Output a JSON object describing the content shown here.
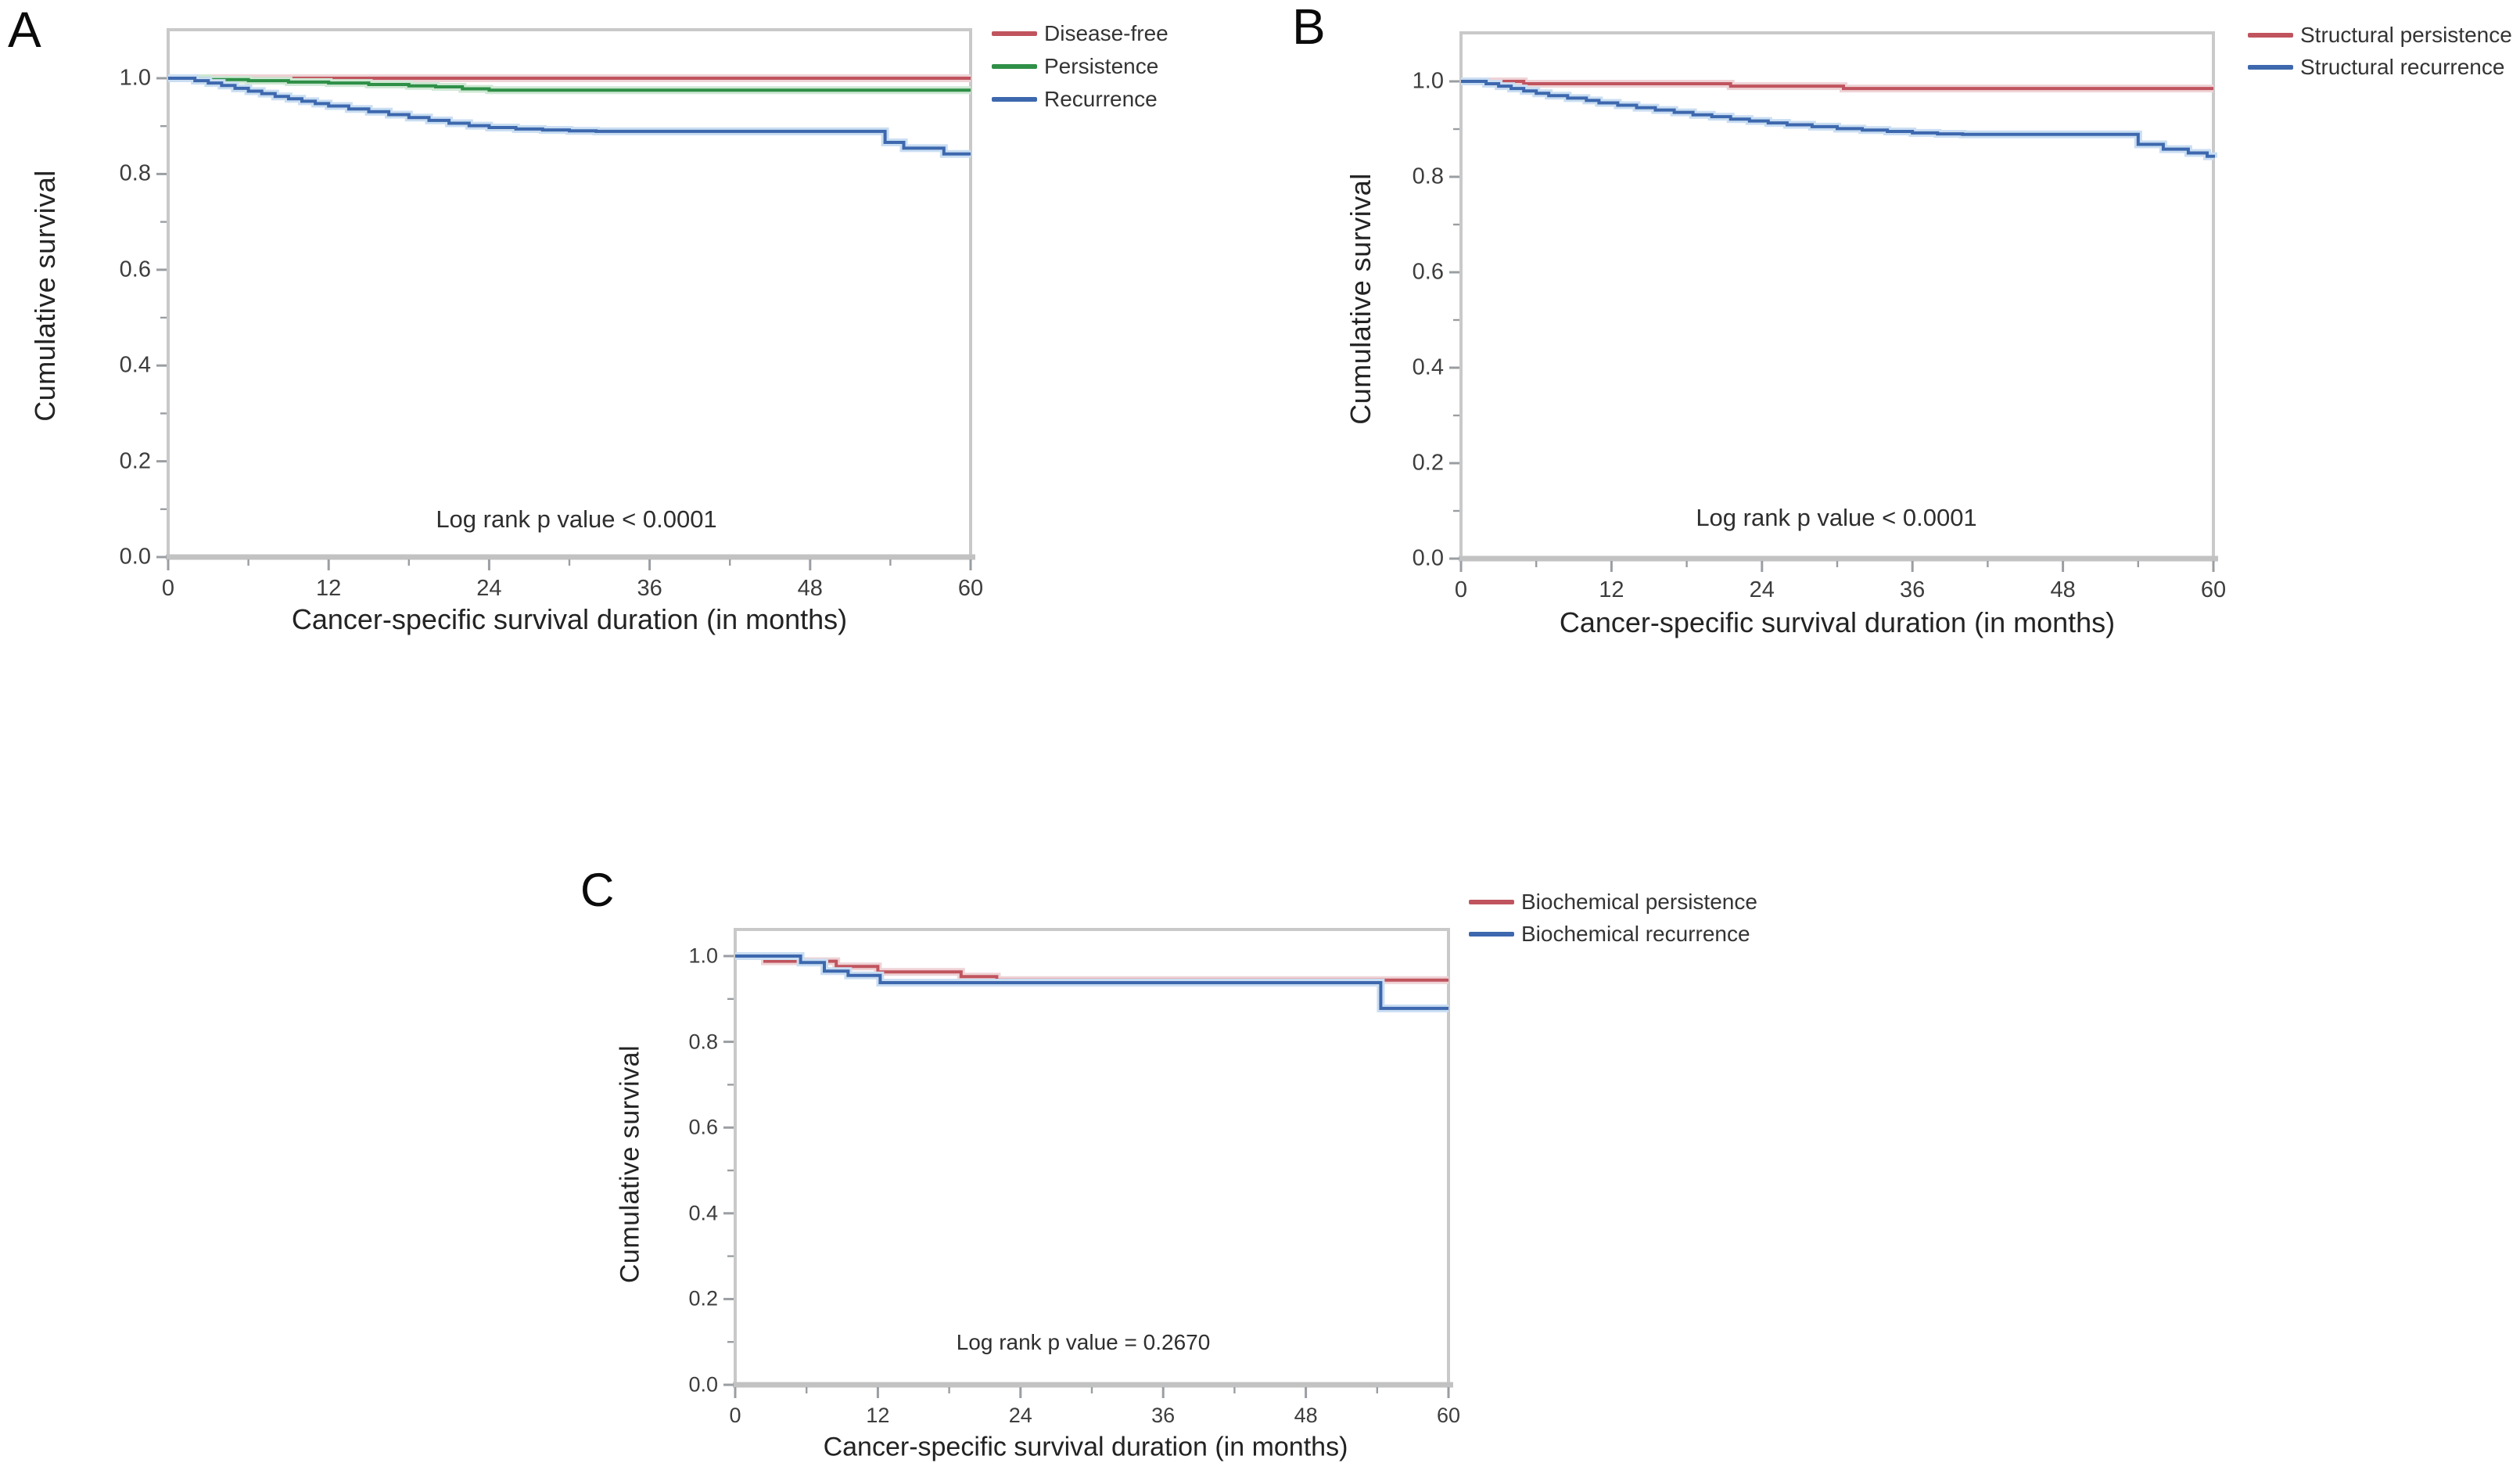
{
  "figure": {
    "background": "#ffffff",
    "axis_frame_color": "#c9c9c9",
    "axis_line_color": "#c2c2c2",
    "tick_color": "#9a9ea2",
    "text_color": "#3d3d3d"
  },
  "chart_data": [
    {
      "type": "line",
      "subtype": "kaplan-meier-step",
      "panel_label": "A",
      "x_label": "Cancer-specific survival duration (in months)",
      "y_label": "Cumulative survival",
      "p_value": "Log rank p value < 0.0001",
      "xlim": [
        0,
        60
      ],
      "ylim": [
        0.0,
        1.1
      ],
      "x_ticks": [
        0,
        12,
        24,
        36,
        48,
        60
      ],
      "x_minor_ticks": [
        6,
        18,
        30,
        42,
        54
      ],
      "y_ticks": [
        "1.0",
        "0.8",
        "0.6",
        "0.4",
        "0.2",
        "0.0"
      ],
      "y_tick_values": [
        1.0,
        0.8,
        0.6,
        0.4,
        0.2,
        0.0
      ],
      "y_minor_ticks": [
        0.9,
        0.7,
        0.5,
        0.3,
        0.1
      ],
      "grid": false,
      "legend_position": "outside-top-right",
      "series": [
        {
          "name": "Disease-free",
          "color": "#c0545e",
          "glow": "#eed3d6",
          "points": [
            [
              0,
              1.0
            ],
            [
              60,
              1.0
            ]
          ]
        },
        {
          "name": "Persistence",
          "color": "#2e8f47",
          "glow": "#cfe8d4",
          "points": [
            [
              0,
              1.0
            ],
            [
              3,
              0.997
            ],
            [
              6,
              0.995
            ],
            [
              9,
              0.992
            ],
            [
              12,
              0.99
            ],
            [
              15,
              0.987
            ],
            [
              18,
              0.984
            ],
            [
              20,
              0.982
            ],
            [
              22,
              0.978
            ],
            [
              24,
              0.975
            ],
            [
              60,
              0.975
            ]
          ]
        },
        {
          "name": "Recurrence",
          "color": "#3d68ae",
          "glow": "#cadef2",
          "points": [
            [
              0,
              1.0
            ],
            [
              2,
              0.995
            ],
            [
              3,
              0.99
            ],
            [
              4,
              0.985
            ],
            [
              5,
              0.979
            ],
            [
              6,
              0.973
            ],
            [
              7,
              0.968
            ],
            [
              8,
              0.962
            ],
            [
              9,
              0.957
            ],
            [
              10,
              0.952
            ],
            [
              11,
              0.947
            ],
            [
              12,
              0.942
            ],
            [
              13.5,
              0.936
            ],
            [
              15,
              0.93
            ],
            [
              16.5,
              0.924
            ],
            [
              18,
              0.918
            ],
            [
              19.5,
              0.912
            ],
            [
              21,
              0.906
            ],
            [
              22.5,
              0.901
            ],
            [
              24,
              0.897
            ],
            [
              26,
              0.894
            ],
            [
              28,
              0.892
            ],
            [
              30,
              0.89
            ],
            [
              32,
              0.889
            ],
            [
              53,
              0.889
            ],
            [
              53.6,
              0.866
            ],
            [
              55,
              0.854
            ],
            [
              58,
              0.842
            ],
            [
              60,
              0.842
            ]
          ]
        }
      ]
    },
    {
      "type": "line",
      "subtype": "kaplan-meier-step",
      "panel_label": "B",
      "x_label": "Cancer-specific survival duration (in months)",
      "y_label": "Cumulative survival",
      "p_value": "Log rank p value < 0.0001",
      "xlim": [
        0,
        60
      ],
      "ylim": [
        0.0,
        1.1
      ],
      "x_ticks": [
        0,
        12,
        24,
        36,
        48,
        60
      ],
      "x_minor_ticks": [
        6,
        18,
        30,
        42,
        54
      ],
      "y_ticks": [
        "1.0",
        "0.8",
        "0.6",
        "0.4",
        "0.2",
        "0.0"
      ],
      "y_tick_values": [
        1.0,
        0.8,
        0.6,
        0.4,
        0.2,
        0.0
      ],
      "y_minor_ticks": [
        0.9,
        0.7,
        0.5,
        0.3,
        0.1
      ],
      "grid": false,
      "legend_position": "outside-top-right",
      "series": [
        {
          "name": "Structural persistence",
          "color": "#c0545e",
          "glow": "#eed3d6",
          "points": [
            [
              0,
              1.0
            ],
            [
              5,
              0.995
            ],
            [
              21.5,
              0.99
            ],
            [
              30.5,
              0.985
            ],
            [
              60,
              0.985
            ]
          ]
        },
        {
          "name": "Structural recurrence",
          "color": "#3d68ae",
          "glow": "#cadef2",
          "points": [
            [
              0,
              1.0
            ],
            [
              2,
              0.995
            ],
            [
              3,
              0.99
            ],
            [
              4,
              0.985
            ],
            [
              5,
              0.98
            ],
            [
              6,
              0.975
            ],
            [
              7,
              0.97
            ],
            [
              8.5,
              0.965
            ],
            [
              10,
              0.96
            ],
            [
              11,
              0.955
            ],
            [
              12.5,
              0.95
            ],
            [
              14,
              0.945
            ],
            [
              15.5,
              0.94
            ],
            [
              17,
              0.935
            ],
            [
              18.5,
              0.93
            ],
            [
              20,
              0.926
            ],
            [
              21.5,
              0.921
            ],
            [
              23,
              0.917
            ],
            [
              24.5,
              0.913
            ],
            [
              26,
              0.909
            ],
            [
              28,
              0.905
            ],
            [
              30,
              0.901
            ],
            [
              32,
              0.898
            ],
            [
              34,
              0.895
            ],
            [
              36,
              0.892
            ],
            [
              38,
              0.89
            ],
            [
              40,
              0.889
            ],
            [
              52.5,
              0.889
            ],
            [
              54,
              0.868
            ],
            [
              56,
              0.858
            ],
            [
              58,
              0.85
            ],
            [
              59.5,
              0.843
            ],
            [
              60,
              0.84
            ]
          ]
        }
      ]
    },
    {
      "type": "line",
      "subtype": "kaplan-meier-step",
      "panel_label": "C",
      "x_label": "Cancer-specific survival duration (in months)",
      "y_label": "Cumulative survival",
      "p_value": "Log rank p value = 0.2670",
      "xlim": [
        0,
        60
      ],
      "ylim": [
        0.0,
        1.1
      ],
      "x_ticks": [
        0,
        12,
        24,
        36,
        48,
        60
      ],
      "x_minor_ticks": [
        6,
        18,
        30,
        42,
        54
      ],
      "y_ticks": [
        "1.0",
        "0.8",
        "0.6",
        "0.4",
        "0.2",
        "0.0"
      ],
      "y_tick_values": [
        1.0,
        0.8,
        0.6,
        0.4,
        0.2,
        0.0
      ],
      "y_minor_ticks": [
        0.9,
        0.7,
        0.5,
        0.3,
        0.1
      ],
      "grid": false,
      "legend_position": "outside-top-right",
      "series": [
        {
          "name": "Biochemical persistence",
          "color": "#c0545e",
          "glow": "#eed3d6",
          "points": [
            [
              0,
              1.0
            ],
            [
              2.5,
              0.988
            ],
            [
              8.5,
              0.976
            ],
            [
              12,
              0.963
            ],
            [
              19,
              0.952
            ],
            [
              22,
              0.944
            ],
            [
              60,
              0.944
            ]
          ]
        },
        {
          "name": "Biochemical recurrence",
          "color": "#3d68ae",
          "glow": "#cadef2",
          "points": [
            [
              0,
              1.0
            ],
            [
              5.5,
              0.985
            ],
            [
              7.5,
              0.965
            ],
            [
              9.5,
              0.955
            ],
            [
              12.2,
              0.938
            ],
            [
              54,
              0.938
            ],
            [
              54.3,
              0.878
            ],
            [
              60,
              0.878
            ]
          ]
        }
      ]
    }
  ]
}
